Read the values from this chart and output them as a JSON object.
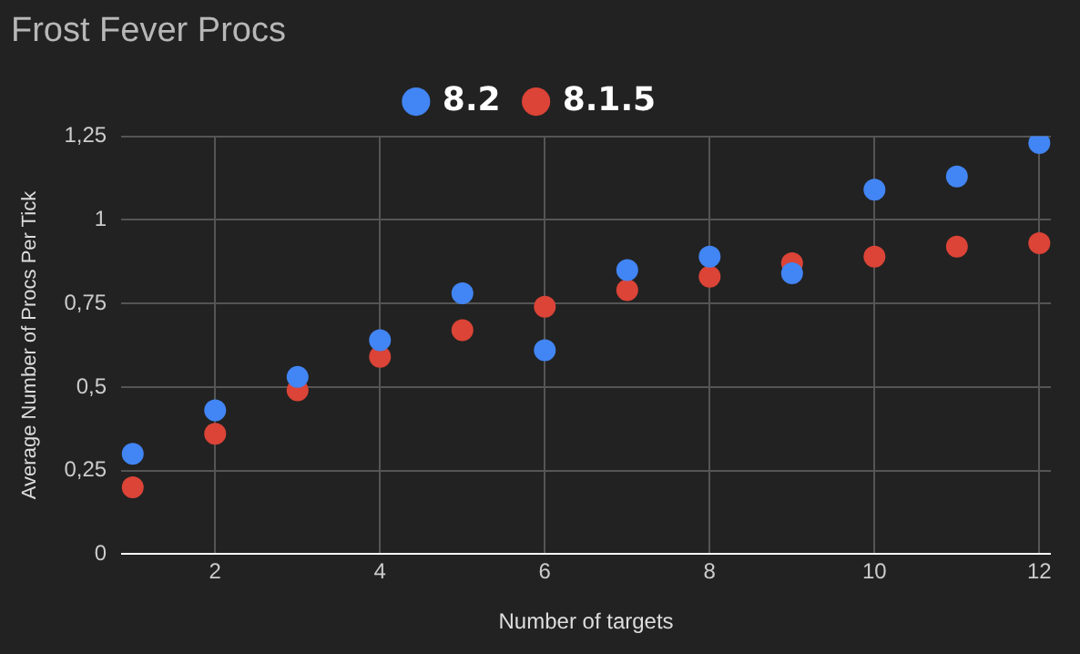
{
  "chart_data": {
    "type": "scatter",
    "title": "Frost Fever Procs",
    "xlabel": "Number of targets",
    "ylabel": "Average Number of Procs Per Tick",
    "x": [
      1,
      2,
      3,
      4,
      5,
      6,
      7,
      8,
      9,
      10,
      11,
      12
    ],
    "series": [
      {
        "name": "8.2",
        "color": "#4285f4",
        "values": [
          0.3,
          0.43,
          0.53,
          0.64,
          0.78,
          0.61,
          0.85,
          0.89,
          0.84,
          1.09,
          1.13,
          1.23
        ]
      },
      {
        "name": "8.1.5",
        "color": "#db4437",
        "values": [
          0.2,
          0.36,
          0.49,
          0.59,
          0.67,
          0.74,
          0.79,
          0.83,
          0.87,
          0.89,
          0.92,
          0.93
        ]
      }
    ],
    "xlim": [
      0.86,
      12.14
    ],
    "xticks": [
      2,
      4,
      6,
      8,
      10,
      12
    ],
    "ylim": [
      0,
      1.25
    ],
    "yticks": [
      0,
      {
        "value": 0.25,
        "label": "0,25"
      },
      {
        "value": 0.5,
        "label": "0,5"
      },
      {
        "value": 0.75,
        "label": "0,75"
      },
      1,
      {
        "value": 1.25,
        "label": "1,25"
      }
    ],
    "grid": true,
    "legend": "top",
    "marker": "circle"
  }
}
